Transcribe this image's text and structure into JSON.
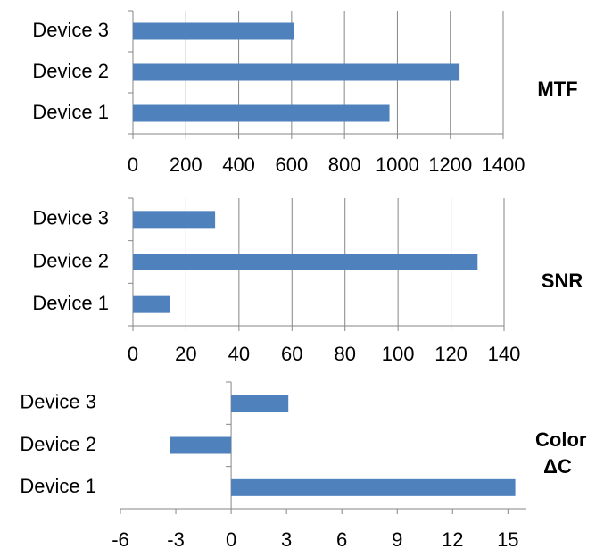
{
  "chart_data": [
    {
      "type": "bar",
      "title": "MTF",
      "categories": [
        "Device 1",
        "Device 2",
        "Device 3"
      ],
      "values": [
        970,
        1235,
        610
      ],
      "color": "#4f81bd",
      "xlim": [
        0,
        1400
      ],
      "xticks": [
        0,
        200,
        400,
        600,
        800,
        1000,
        1200,
        1400
      ],
      "grid": true
    },
    {
      "type": "bar",
      "title": "SNR",
      "categories": [
        "Device 1",
        "Device 2",
        "Device 3"
      ],
      "values": [
        14,
        130,
        31
      ],
      "color": "#4f81bd",
      "xlim": [
        0,
        140
      ],
      "xticks": [
        0,
        20,
        40,
        60,
        80,
        100,
        120,
        140
      ],
      "grid": true
    },
    {
      "type": "bar",
      "title": "Color ΔC",
      "categories": [
        "Device 1",
        "Device 2",
        "Device 3"
      ],
      "values": [
        15.4,
        -3.3,
        3.1
      ],
      "color": "#4f81bd",
      "xlim": [
        -6,
        16
      ],
      "xticks": [
        -6,
        -3,
        0,
        3,
        6,
        9,
        12,
        15
      ],
      "grid": false
    }
  ]
}
